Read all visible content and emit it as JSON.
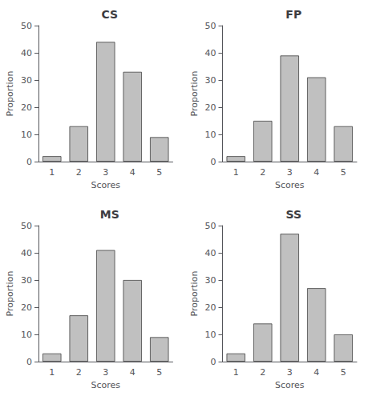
{
  "chart_data": [
    {
      "type": "bar",
      "title": "CS",
      "xlabel": "Scores",
      "ylabel": "Proportion",
      "categories": [
        "1",
        "2",
        "3",
        "4",
        "5"
      ],
      "values": [
        2,
        13,
        44,
        33,
        9
      ],
      "color": "#c0c0c0",
      "ylim": [
        0,
        50
      ],
      "yticks": [
        0,
        10,
        20,
        30,
        40,
        50
      ],
      "grid": false
    },
    {
      "type": "bar",
      "title": "FP",
      "xlabel": "Scores",
      "ylabel": "Proportion",
      "categories": [
        "1",
        "2",
        "3",
        "4",
        "5"
      ],
      "values": [
        2,
        15,
        39,
        31,
        13
      ],
      "color": "#c0c0c0",
      "ylim": [
        0,
        50
      ],
      "yticks": [
        0,
        10,
        20,
        30,
        40,
        50
      ],
      "grid": false
    },
    {
      "type": "bar",
      "title": "MS",
      "xlabel": "Scores",
      "ylabel": "Proportion",
      "categories": [
        "1",
        "2",
        "3",
        "4",
        "5"
      ],
      "values": [
        3,
        17,
        41,
        30,
        9
      ],
      "color": "#c0c0c0",
      "ylim": [
        0,
        50
      ],
      "yticks": [
        0,
        10,
        20,
        30,
        40,
        50
      ],
      "grid": false
    },
    {
      "type": "bar",
      "title": "SS",
      "xlabel": "Scores",
      "ylabel": "Proportion",
      "categories": [
        "1",
        "2",
        "3",
        "4",
        "5"
      ],
      "values": [
        3,
        14,
        47,
        27,
        10
      ],
      "color": "#c0c0c0",
      "ylim": [
        0,
        50
      ],
      "yticks": [
        0,
        10,
        20,
        30,
        40,
        50
      ],
      "grid": false
    }
  ]
}
